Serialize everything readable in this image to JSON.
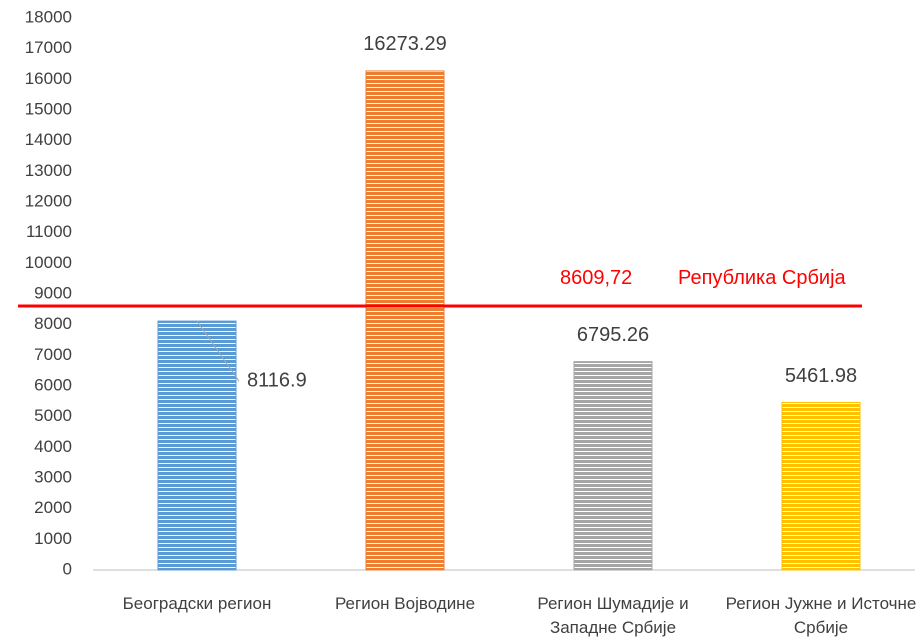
{
  "chart_data": {
    "type": "bar",
    "categories": [
      "Београдски регион",
      "Регион Војводине",
      "Регион Шумадије и Западне Србије",
      "Регион Јужне и Источне Србије"
    ],
    "values": [
      8116.9,
      16273.29,
      6795.26,
      5461.98
    ],
    "colors": [
      "#5b9bd5",
      "#ed7d31",
      "#a5a5a5",
      "#ffc000"
    ],
    "ylim": [
      0,
      18000
    ],
    "yticks": [
      0,
      1000,
      2000,
      3000,
      4000,
      5000,
      6000,
      7000,
      8000,
      9000,
      10000,
      11000,
      12000,
      13000,
      14000,
      15000,
      16000,
      17000,
      18000
    ],
    "grid": false,
    "reference_line": {
      "value": 8609.72,
      "label": "8609,72",
      "name": "Република Србија",
      "color": "#ff0000"
    }
  }
}
